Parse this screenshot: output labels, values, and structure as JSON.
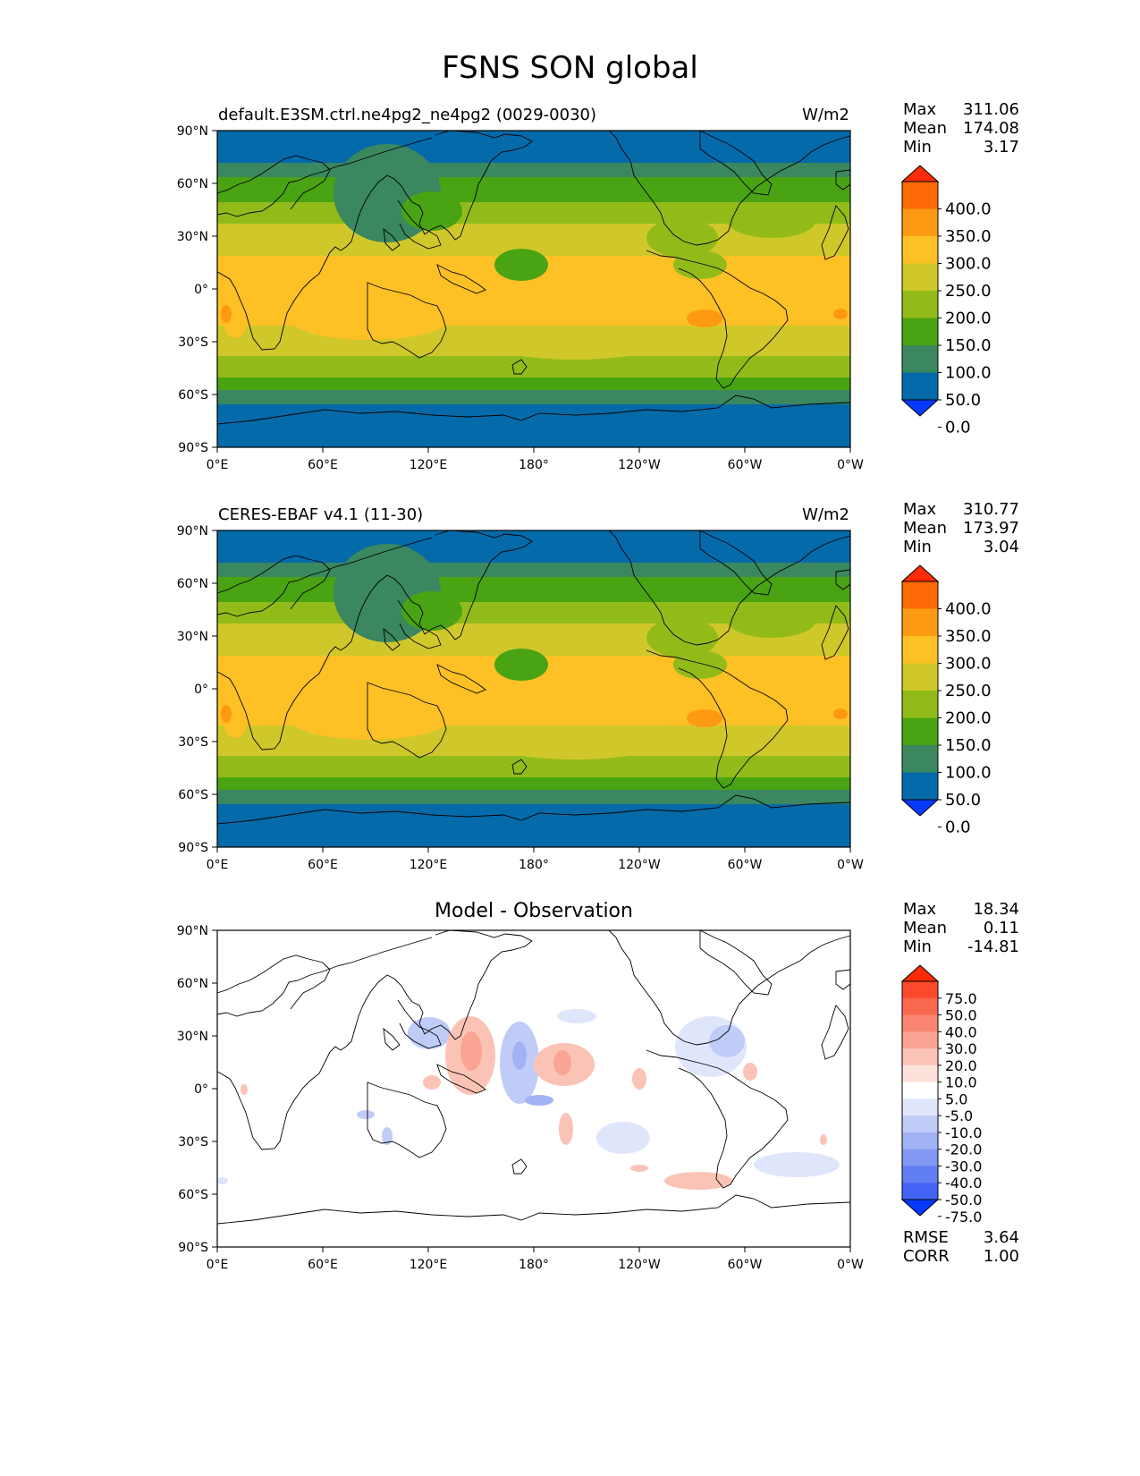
{
  "title": "FSNS SON global",
  "axis_ticks": {
    "lat": [
      "90°N",
      "60°N",
      "30°N",
      "0°",
      "30°S",
      "60°S",
      "90°S"
    ],
    "lon": [
      "0°E",
      "60°E",
      "120°E",
      "180°",
      "120°W",
      "60°W",
      "0°W"
    ]
  },
  "panels": [
    {
      "id": "model",
      "title": "default.E3SM.ctrl.ne4pg2_ne4pg2 (0029-0030)",
      "units": "W/m2",
      "stats": {
        "Max": "311.06",
        "Mean": "174.08",
        "Min": "3.17"
      },
      "colorbar": {
        "labels": [
          "400.0",
          "350.0",
          "300.0",
          "250.0",
          "200.0",
          "150.0",
          "100.0",
          "50.0",
          "0.0"
        ],
        "colors": [
          "#fe2b08",
          "#fe6b06",
          "#fe9a12",
          "#fdc025",
          "#d0c82a",
          "#92bb1a",
          "#4aa313",
          "#3a8760",
          "#056aa9",
          "#0539fd"
        ]
      }
    },
    {
      "id": "obs",
      "title": "CERES-EBAF v4.1 (11-30)",
      "units": "W/m2",
      "stats": {
        "Max": "310.77",
        "Mean": "173.97",
        "Min": "3.04"
      },
      "colorbar": {
        "labels": [
          "400.0",
          "350.0",
          "300.0",
          "250.0",
          "200.0",
          "150.0",
          "100.0",
          "50.0",
          "0.0"
        ],
        "colors": [
          "#fe2b08",
          "#fe6b06",
          "#fe9a12",
          "#fdc025",
          "#d0c82a",
          "#92bb1a",
          "#4aa313",
          "#3a8760",
          "#056aa9",
          "#0539fd"
        ]
      }
    },
    {
      "id": "diff",
      "title": "Model - Observation",
      "units": "",
      "stats": {
        "Max": "18.34",
        "Mean": "0.11",
        "Min": "-14.81"
      },
      "footer": {
        "RMSE": "3.64",
        "CORR": "1.00"
      },
      "colorbar": {
        "labels": [
          "75.0",
          "50.0",
          "40.0",
          "30.0",
          "20.0",
          "10.0",
          "5.0",
          "-5.0",
          "-10.0",
          "-20.0",
          "-30.0",
          "-40.0",
          "-50.0",
          "-75.0"
        ],
        "colors": [
          "#fe2b08",
          "#fd4a2e",
          "#fb6850",
          "#fa8672",
          "#faa494",
          "#fbc3b6",
          "#fce2da",
          "#ffffff",
          "#dfe6fc",
          "#c0ccf8",
          "#a1b2f5",
          "#8198f3",
          "#627ef3",
          "#4263f6",
          "#0539fd"
        ]
      }
    }
  ]
}
